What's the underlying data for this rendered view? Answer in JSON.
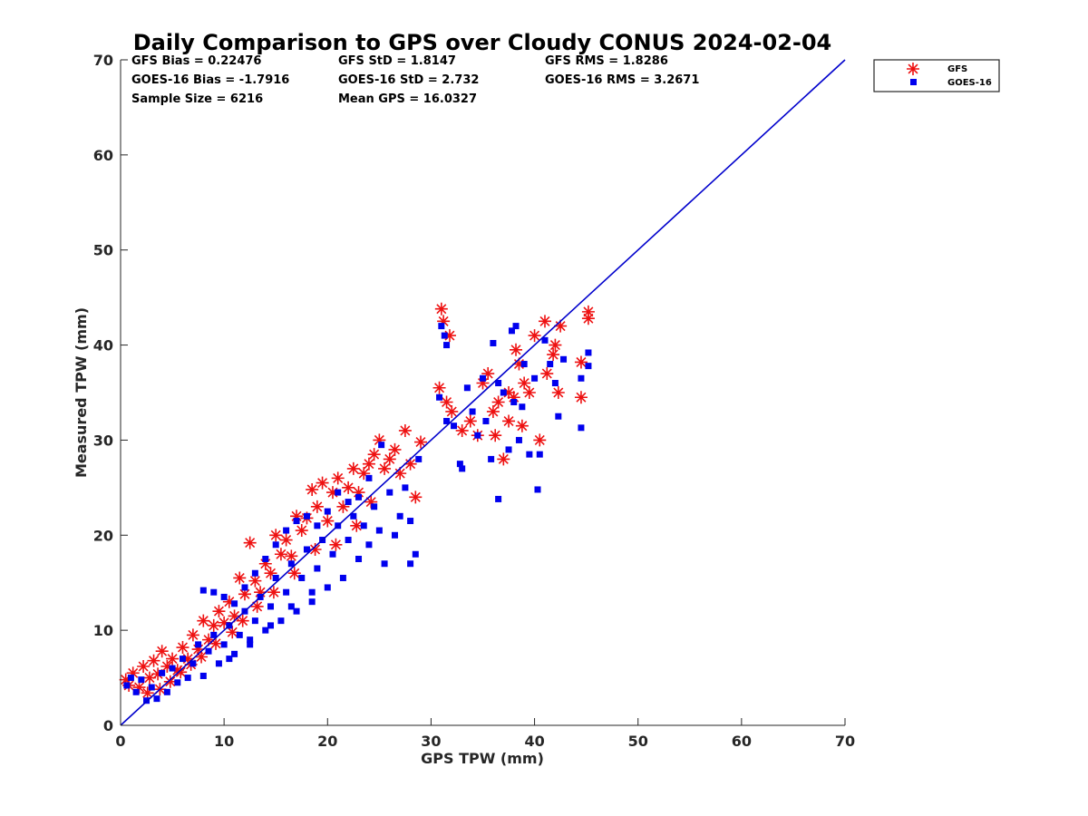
{
  "chart_data": {
    "type": "scatter",
    "title": "Daily Comparison to GPS over Cloudy CONUS 2024-02-04",
    "xlabel": "GPS TPW (mm)",
    "ylabel": "Measured TPW (mm)",
    "xlim": [
      0,
      70
    ],
    "ylim": [
      0,
      70
    ],
    "xticks": [
      "0",
      "10",
      "20",
      "30",
      "40",
      "50",
      "60",
      "70"
    ],
    "yticks": [
      "0",
      "10",
      "20",
      "30",
      "40",
      "50",
      "60",
      "70"
    ],
    "grid": false,
    "legend_position": "outside top-right",
    "stats": [
      [
        "GFS Bias = 0.22476",
        "GFS StD = 1.8147",
        "GFS RMS = 1.8286"
      ],
      [
        "GOES-16 Bias = -1.7916",
        "GOES-16 StD = 2.732",
        "GOES-16 RMS = 3.2671"
      ],
      [
        "Sample Size = 6216",
        "Mean GPS = 16.0327",
        ""
      ]
    ],
    "reference_line": {
      "x": [
        0,
        70
      ],
      "y": [
        0,
        70
      ],
      "color": "#0000cc"
    },
    "series": [
      {
        "name": "GFS",
        "marker": "asterisk",
        "color": "#ee1111",
        "points": [
          [
            0.5,
            4.8
          ],
          [
            0.8,
            4.2
          ],
          [
            1.2,
            5.5
          ],
          [
            1.8,
            4.0
          ],
          [
            2.2,
            6.2
          ],
          [
            2.8,
            5.0
          ],
          [
            3.2,
            6.8
          ],
          [
            3.6,
            5.4
          ],
          [
            4.0,
            7.8
          ],
          [
            4.5,
            6.2
          ],
          [
            5.0,
            7.0
          ],
          [
            5.5,
            5.8
          ],
          [
            6.0,
            8.2
          ],
          [
            6.5,
            7.0
          ],
          [
            7.0,
            9.5
          ],
          [
            7.5,
            8.0
          ],
          [
            8.0,
            11.0
          ],
          [
            8.5,
            9.0
          ],
          [
            9.0,
            10.5
          ],
          [
            9.5,
            12.0
          ],
          [
            10.0,
            10.8
          ],
          [
            10.5,
            13.0
          ],
          [
            11.0,
            11.5
          ],
          [
            11.5,
            15.5
          ],
          [
            12.0,
            13.8
          ],
          [
            12.5,
            19.2
          ],
          [
            13.0,
            15.2
          ],
          [
            13.5,
            14.0
          ],
          [
            14.0,
            17.0
          ],
          [
            14.5,
            16.0
          ],
          [
            15.0,
            20.0
          ],
          [
            15.5,
            18.0
          ],
          [
            16.0,
            19.5
          ],
          [
            16.5,
            17.8
          ],
          [
            17.0,
            22.0
          ],
          [
            17.5,
            20.5
          ],
          [
            18.0,
            21.8
          ],
          [
            18.5,
            24.8
          ],
          [
            19.0,
            23.0
          ],
          [
            19.5,
            25.5
          ],
          [
            20.0,
            21.5
          ],
          [
            20.5,
            24.5
          ],
          [
            21.0,
            26.0
          ],
          [
            21.5,
            23.0
          ],
          [
            22.0,
            25.0
          ],
          [
            22.5,
            27.0
          ],
          [
            23.0,
            24.5
          ],
          [
            23.5,
            26.5
          ],
          [
            24.0,
            27.5
          ],
          [
            24.5,
            28.5
          ],
          [
            25.0,
            30.0
          ],
          [
            25.5,
            27.0
          ],
          [
            26.0,
            28.0
          ],
          [
            26.5,
            29.0
          ],
          [
            27.0,
            26.5
          ],
          [
            27.5,
            31.0
          ],
          [
            28.0,
            27.5
          ],
          [
            28.5,
            24.0
          ],
          [
            29.0,
            29.8
          ],
          [
            20.8,
            19.0
          ],
          [
            22.8,
            21.0
          ],
          [
            24.2,
            23.5
          ],
          [
            18.8,
            18.5
          ],
          [
            16.8,
            16.0
          ],
          [
            14.8,
            14.0
          ],
          [
            13.2,
            12.5
          ],
          [
            11.8,
            11.0
          ],
          [
            10.8,
            9.8
          ],
          [
            9.2,
            8.6
          ],
          [
            7.8,
            7.2
          ],
          [
            6.8,
            6.4
          ],
          [
            5.8,
            5.6
          ],
          [
            4.8,
            4.6
          ],
          [
            3.8,
            3.8
          ],
          [
            2.6,
            3.4
          ],
          [
            31.0,
            43.8
          ],
          [
            31.2,
            42.5
          ],
          [
            31.8,
            41.0
          ],
          [
            30.8,
            35.5
          ],
          [
            31.5,
            34.0
          ],
          [
            32.0,
            33.0
          ],
          [
            33.0,
            31.0
          ],
          [
            33.8,
            32.0
          ],
          [
            34.5,
            30.5
          ],
          [
            35.0,
            36.0
          ],
          [
            35.5,
            37.0
          ],
          [
            36.0,
            33.0
          ],
          [
            36.2,
            30.5
          ],
          [
            37.0,
            28.0
          ],
          [
            37.5,
            32.0
          ],
          [
            38.0,
            34.5
          ],
          [
            38.2,
            39.5
          ],
          [
            38.8,
            31.5
          ],
          [
            39.0,
            36.0
          ],
          [
            39.5,
            35.0
          ],
          [
            40.0,
            41.0
          ],
          [
            40.5,
            30.0
          ],
          [
            41.0,
            42.5
          ],
          [
            41.2,
            37.0
          ],
          [
            41.8,
            39.0
          ],
          [
            42.0,
            40.0
          ],
          [
            42.5,
            42.0
          ],
          [
            42.3,
            35.0
          ],
          [
            44.5,
            38.2
          ],
          [
            44.5,
            34.5
          ],
          [
            45.2,
            43.5
          ],
          [
            45.2,
            42.8
          ],
          [
            38.5,
            38.0
          ],
          [
            37.5,
            35.0
          ],
          [
            36.5,
            34.0
          ]
        ]
      },
      {
        "name": "GOES-16",
        "marker": "square",
        "color": "#0000ee",
        "points": [
          [
            0.6,
            4.2
          ],
          [
            1.0,
            5.0
          ],
          [
            1.5,
            3.5
          ],
          [
            2.0,
            4.8
          ],
          [
            2.5,
            2.6
          ],
          [
            3.0,
            4.0
          ],
          [
            3.5,
            2.8
          ],
          [
            4.0,
            5.5
          ],
          [
            4.5,
            3.5
          ],
          [
            5.0,
            6.0
          ],
          [
            5.5,
            4.5
          ],
          [
            6.0,
            7.0
          ],
          [
            6.5,
            5.0
          ],
          [
            7.0,
            6.5
          ],
          [
            7.5,
            8.5
          ],
          [
            8.0,
            5.2
          ],
          [
            8.5,
            7.8
          ],
          [
            9.0,
            9.5
          ],
          [
            9.5,
            6.5
          ],
          [
            10.0,
            8.5
          ],
          [
            10.5,
            10.5
          ],
          [
            11.0,
            7.5
          ],
          [
            11.5,
            9.5
          ],
          [
            12.0,
            12.0
          ],
          [
            12.5,
            8.5
          ],
          [
            13.0,
            11.0
          ],
          [
            13.5,
            13.5
          ],
          [
            14.0,
            10.0
          ],
          [
            14.5,
            12.5
          ],
          [
            15.0,
            15.5
          ],
          [
            15.5,
            11.0
          ],
          [
            16.0,
            14.0
          ],
          [
            16.5,
            17.0
          ],
          [
            17.0,
            12.0
          ],
          [
            17.5,
            15.5
          ],
          [
            18.0,
            18.5
          ],
          [
            18.5,
            13.0
          ],
          [
            19.0,
            16.5
          ],
          [
            19.5,
            19.5
          ],
          [
            20.0,
            14.5
          ],
          [
            20.5,
            18.0
          ],
          [
            21.0,
            21.0
          ],
          [
            21.5,
            15.5
          ],
          [
            22.0,
            19.5
          ],
          [
            22.5,
            22.0
          ],
          [
            23.0,
            17.5
          ],
          [
            23.5,
            21.0
          ],
          [
            24.0,
            19.0
          ],
          [
            24.5,
            23.0
          ],
          [
            25.0,
            20.5
          ],
          [
            25.5,
            17.0
          ],
          [
            26.0,
            24.5
          ],
          [
            26.5,
            20.0
          ],
          [
            27.0,
            22.0
          ],
          [
            27.5,
            25.0
          ],
          [
            28.0,
            21.5
          ],
          [
            28.5,
            18.0
          ],
          [
            28.8,
            28.0
          ],
          [
            28.0,
            17.0
          ],
          [
            25.2,
            29.5
          ],
          [
            8.0,
            14.2
          ],
          [
            9.0,
            14.0
          ],
          [
            10.0,
            13.5
          ],
          [
            11.0,
            12.8
          ],
          [
            12.0,
            14.5
          ],
          [
            13.0,
            16.0
          ],
          [
            14.0,
            17.5
          ],
          [
            15.0,
            19.0
          ],
          [
            16.0,
            20.5
          ],
          [
            17.0,
            21.5
          ],
          [
            18.0,
            22.0
          ],
          [
            19.0,
            21.0
          ],
          [
            20.0,
            22.5
          ],
          [
            21.0,
            24.5
          ],
          [
            22.0,
            23.5
          ],
          [
            23.0,
            24.0
          ],
          [
            24.0,
            26.0
          ],
          [
            10.5,
            7.0
          ],
          [
            12.5,
            9.0
          ],
          [
            14.5,
            10.5
          ],
          [
            16.5,
            12.5
          ],
          [
            18.5,
            14.0
          ],
          [
            31.0,
            42.0
          ],
          [
            31.3,
            41.0
          ],
          [
            31.5,
            40.0
          ],
          [
            30.8,
            34.5
          ],
          [
            31.5,
            32.0
          ],
          [
            32.2,
            31.5
          ],
          [
            32.8,
            27.5
          ],
          [
            33.0,
            27.0
          ],
          [
            33.5,
            35.5
          ],
          [
            34.0,
            33.0
          ],
          [
            34.5,
            30.5
          ],
          [
            35.0,
            36.5
          ],
          [
            35.3,
            32.0
          ],
          [
            35.8,
            28.0
          ],
          [
            36.0,
            40.2
          ],
          [
            36.5,
            23.8
          ],
          [
            37.0,
            35.0
          ],
          [
            37.5,
            29.0
          ],
          [
            37.8,
            41.5
          ],
          [
            38.2,
            42.0
          ],
          [
            38.5,
            30.0
          ],
          [
            38.8,
            33.5
          ],
          [
            39.0,
            38.0
          ],
          [
            39.5,
            28.5
          ],
          [
            40.0,
            36.5
          ],
          [
            40.3,
            24.8
          ],
          [
            40.5,
            28.5
          ],
          [
            41.0,
            40.5
          ],
          [
            41.5,
            38.0
          ],
          [
            42.0,
            36.0
          ],
          [
            42.3,
            32.5
          ],
          [
            42.8,
            38.5
          ],
          [
            44.5,
            36.5
          ],
          [
            44.5,
            31.3
          ],
          [
            45.2,
            39.2
          ],
          [
            45.2,
            37.8
          ],
          [
            38.0,
            34.0
          ],
          [
            36.5,
            36.0
          ]
        ]
      }
    ]
  }
}
